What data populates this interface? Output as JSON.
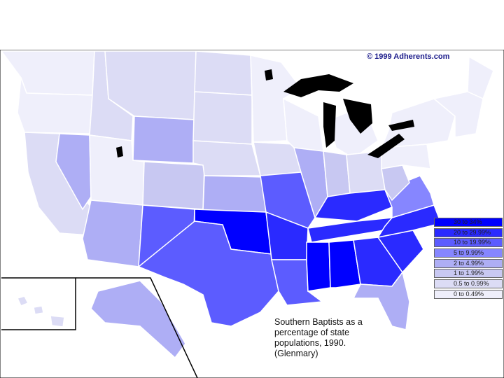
{
  "map": {
    "copyright": "© 1999 Adherents.com",
    "title_lines": [
      "Southern Baptists as a",
      "percentage of state",
      "populations, 1990.",
      "(Glenmary)"
    ],
    "legend": [
      {
        "label": "30 to 34%",
        "color": "#0000ff"
      },
      {
        "label": "20 to 29.99%",
        "color": "#2a2aff"
      },
      {
        "label": "10 to 19.99%",
        "color": "#5c5cff"
      },
      {
        "label": "5 to 9.99%",
        "color": "#8686ff"
      },
      {
        "label": "2 to 4.99%",
        "color": "#aeaef5"
      },
      {
        "label": "1 to 1.99%",
        "color": "#c8c8f2"
      },
      {
        "label": "0.5 to 0.99%",
        "color": "#dcdcf5"
      },
      {
        "label": "0 to 0.49%",
        "color": "#efeffb"
      }
    ],
    "colors": {
      "lakes": "#000000",
      "background": "#ffffff",
      "border": "#ffffff",
      "text": "#111111"
    }
  }
}
